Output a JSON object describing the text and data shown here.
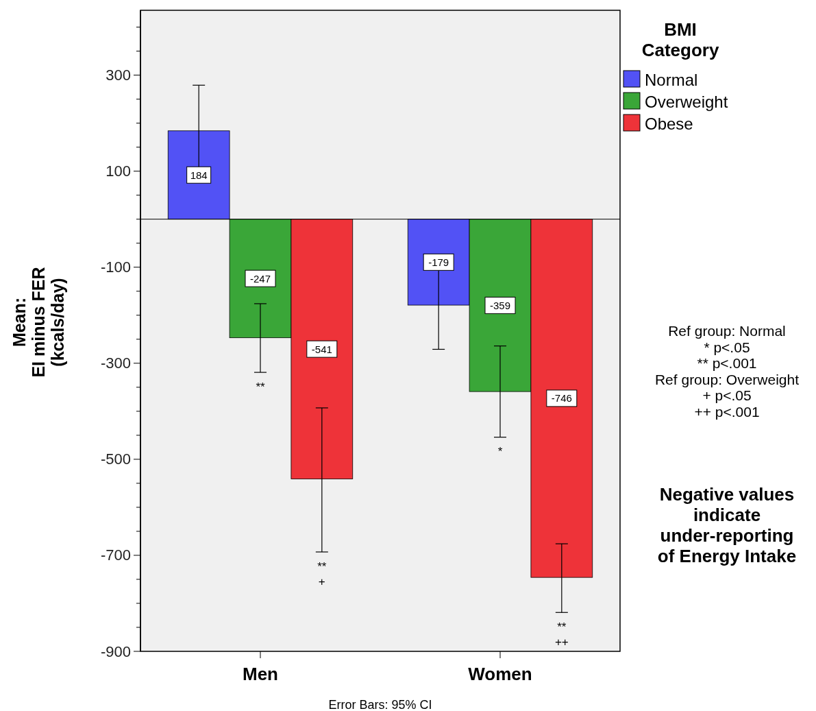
{
  "chart_data": {
    "type": "bar",
    "ylabel": "Mean:\nEI minus FER\n(kcals/day)",
    "legend_title": "BMI\nCategory",
    "legend": "top right",
    "data_labels": true,
    "grid": false,
    "categories": [
      "Men",
      "Women"
    ],
    "series": [
      {
        "name": "Normal",
        "color": "#5252f5",
        "values": [
          184,
          -179
        ],
        "errors": [
          [
            91,
            279
          ],
          [
            -271,
            -87
          ]
        ]
      },
      {
        "name": "Overweight",
        "color": "#3aa638",
        "values": [
          -247,
          -359
        ],
        "errors": [
          [
            -319,
            -176
          ],
          [
            -454,
            -264
          ]
        ]
      },
      {
        "name": "Obese",
        "color": "#ee3339",
        "values": [
          -541,
          -746
        ],
        "errors": [
          [
            -693,
            -393
          ],
          [
            -819,
            -676
          ]
        ]
      }
    ],
    "ref_lines": [
      {
        "axis": "y",
        "value": 0
      }
    ],
    "ylim": [
      -900,
      435
    ],
    "yticks": [
      {
        "value": -900,
        "label": "-900"
      },
      {
        "value": -850,
        "label": null
      },
      {
        "value": -800,
        "label": null
      },
      {
        "value": -750,
        "label": null
      },
      {
        "value": -700,
        "label": "-700"
      },
      {
        "value": -650,
        "label": null
      },
      {
        "value": -600,
        "label": null
      },
      {
        "value": -550,
        "label": null
      },
      {
        "value": -500,
        "label": "-500"
      },
      {
        "value": -450,
        "label": null
      },
      {
        "value": -400,
        "label": null
      },
      {
        "value": -350,
        "label": null
      },
      {
        "value": -300,
        "label": "-300"
      },
      {
        "value": -250,
        "label": null
      },
      {
        "value": -200,
        "label": null
      },
      {
        "value": -150,
        "label": null
      },
      {
        "value": -100,
        "label": "-100"
      },
      {
        "value": -50,
        "label": null
      },
      {
        "value": 0,
        "label": null
      },
      {
        "value": 50,
        "label": null
      },
      {
        "value": 100,
        "label": "100"
      },
      {
        "value": 150,
        "label": null
      },
      {
        "value": 200,
        "label": null
      },
      {
        "value": 250,
        "label": null
      },
      {
        "value": 300,
        "label": "300"
      },
      {
        "value": 350,
        "label": null
      },
      {
        "value": 400,
        "label": null
      }
    ],
    "annotations": [
      "**",
      "**",
      "+",
      "*",
      "**",
      "++",
      "Ref group: Normal\n* p<.05\n** p<.001\nRef group: Overweight\n+ p<.05\n++ p<.001",
      "Negative values\nindicate\nunder-reporting\nof Energy Intake",
      "Error Bars: 95% CI"
    ]
  }
}
